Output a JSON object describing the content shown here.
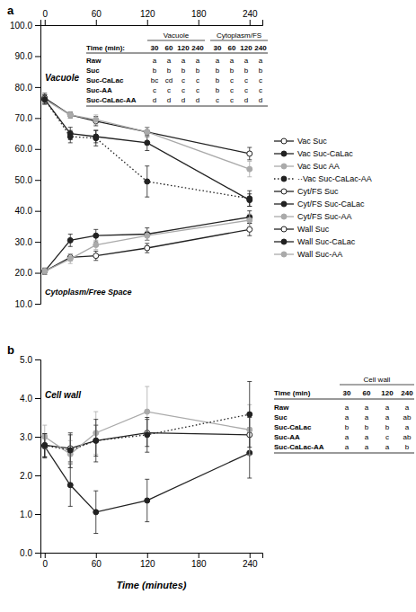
{
  "chart_data": [
    {
      "type": "line",
      "title": "a",
      "x": [
        0,
        30,
        60,
        120,
        240
      ],
      "xlim": [
        -5,
        255
      ],
      "xticks": [
        0,
        60,
        120,
        180,
        240
      ],
      "ylim": [
        10.0,
        100.0
      ],
      "yticks": [
        {
          "value": 10.0,
          "label": "10.0"
        },
        {
          "value": 20.0,
          "label": "20.0"
        },
        {
          "value": 30.0,
          "label": "30.0"
        },
        {
          "value": 40.0,
          "label": "40.0"
        },
        {
          "value": 50.0,
          "label": "50.0"
        },
        {
          "value": 60.0,
          "label": "60.0"
        },
        {
          "value": 70.0,
          "label": "70.0"
        },
        {
          "value": 80.0,
          "label": "80.0"
        },
        {
          "value": 90.0,
          "label": "90.0"
        },
        {
          "value": 100.0,
          "label": "100.0"
        }
      ],
      "grid": false,
      "legend": "right",
      "annotations": [
        "Vacuole",
        "Cytoplasm/Free Space"
      ],
      "series": [
        {
          "name": "Vac Suc",
          "color": "#222222",
          "marker": "circle-open",
          "line_style": "solid",
          "values": [
            76.5,
            71.0,
            69.0,
            65.5,
            58.5
          ],
          "errors": [
            1.5,
            1.0,
            1.5,
            1.5,
            2.0
          ]
        },
        {
          "name": "Vac Suc-CaLac",
          "color": "#222222",
          "marker": "circle",
          "line_style": "solid",
          "values": [
            76.0,
            65.0,
            64.0,
            62.0,
            43.5
          ],
          "errors": [
            1.5,
            2.0,
            2.0,
            2.5,
            2.0
          ]
        },
        {
          "name": "Vac Suc AA",
          "color": "#aaaaaa",
          "marker": "circle",
          "line_style": "solid",
          "values": [
            76.0,
            71.0,
            69.5,
            65.5,
            53.5
          ],
          "errors": [
            1.5,
            1.0,
            1.5,
            1.5,
            2.5
          ]
        },
        {
          "name": "··Vac Suc-CaLac-AA",
          "color": "#222222",
          "marker": "circle",
          "line_style": "dotted",
          "values": [
            76.0,
            64.0,
            63.5,
            49.5,
            44.0
          ],
          "errors": [
            1.5,
            2.0,
            2.5,
            5.0,
            2.5
          ]
        },
        {
          "name": "Cyt/FS Suc",
          "color": "#222222",
          "marker": "circle-open",
          "line_style": "solid",
          "values": [
            20.5,
            25.0,
            25.5,
            28.0,
            34.0
          ],
          "errors": [
            1.0,
            1.0,
            1.5,
            1.5,
            2.0
          ]
        },
        {
          "name": "Cyt/FS Suc-CaLac",
          "color": "#222222",
          "marker": "circle",
          "line_style": "solid",
          "values": [
            20.5,
            30.5,
            32.0,
            32.5,
            38.0
          ],
          "errors": [
            1.0,
            2.0,
            2.0,
            2.0,
            2.0
          ]
        },
        {
          "name": "Cyt/FS Suc-AA",
          "color": "#aaaaaa",
          "marker": "circle",
          "line_style": "solid",
          "values": [
            20.5,
            24.5,
            29.0,
            32.0,
            37.0
          ],
          "errors": [
            1.0,
            1.5,
            1.5,
            1.5,
            2.0
          ]
        }
      ],
      "table": {
        "groups": [
          "Vacuole",
          "Cytoplasm/FS"
        ],
        "header": "Time (min):",
        "columns": [
          "30",
          "60",
          "120",
          "240",
          "30",
          "60",
          "120",
          "240"
        ],
        "rows": [
          "Raw",
          "Suc",
          "Suc-CaLac",
          "Suc-AA",
          "Suc-CaLac-AA"
        ],
        "cells": [
          [
            "a",
            "a",
            "a",
            "a",
            "a",
            "a",
            "a",
            "a"
          ],
          [
            "b",
            "b",
            "b",
            "b",
            "b",
            "b",
            "b",
            "b"
          ],
          [
            "bc",
            "cd",
            "c",
            "c",
            "b",
            "c",
            "c",
            "c"
          ],
          [
            "c",
            "c",
            "c",
            "c",
            "b",
            "c",
            "c",
            "c"
          ],
          [
            "d",
            "d",
            "d",
            "d",
            "c",
            "c",
            "d",
            "d"
          ]
        ]
      }
    },
    {
      "type": "line",
      "title": "b",
      "xlabel": "Time (minutes)",
      "x": [
        0,
        30,
        60,
        120,
        240
      ],
      "xlim": [
        -5,
        255
      ],
      "xticks": [
        0,
        60,
        120,
        180,
        240
      ],
      "ylim": [
        0.0,
        5.0
      ],
      "yticks": [
        {
          "value": 0.0,
          "label": "0.0"
        },
        {
          "value": 1.0,
          "label": "1.0"
        },
        {
          "value": 2.0,
          "label": "2.0"
        },
        {
          "value": 3.0,
          "label": "3.0"
        },
        {
          "value": 4.0,
          "label": "4.0"
        },
        {
          "value": 5.0,
          "label": "5.0"
        }
      ],
      "grid": false,
      "legend": "right",
      "annotations": [
        "Cell wall"
      ],
      "series": [
        {
          "name": "Wall Suc",
          "color": "#222222",
          "marker": "circle-open",
          "line_style": "solid",
          "values": [
            2.78,
            2.7,
            2.9,
            3.1,
            3.05
          ],
          "errors": [
            0.3,
            0.35,
            0.4,
            0.35,
            0.45
          ]
        },
        {
          "name": "Wall Suc-CaLac",
          "color": "#222222",
          "marker": "circle",
          "line_style": "solid",
          "values": [
            2.75,
            1.75,
            1.05,
            1.35,
            2.58
          ],
          "errors": [
            0.3,
            0.55,
            0.55,
            0.55,
            0.65
          ]
        },
        {
          "name": "Wall Suc-AA",
          "color": "#aaaaaa",
          "marker": "circle",
          "line_style": "solid",
          "values": [
            3.0,
            2.55,
            3.1,
            3.65,
            3.18
          ],
          "errors": [
            0.3,
            0.35,
            0.55,
            0.65,
            0.65
          ]
        },
        {
          "color": "#222222",
          "marker": "circle",
          "line_style": "dotted",
          "values": [
            2.78,
            2.65,
            2.9,
            3.05,
            3.58
          ],
          "errors": [
            0.3,
            0.45,
            0.55,
            0.45,
            0.85
          ]
        }
      ],
      "table": {
        "groups": [
          "Cell wall"
        ],
        "header": "Time (min)",
        "columns": [
          "30",
          "60",
          "120",
          "240"
        ],
        "rows": [
          "Raw",
          "Suc",
          "Suc-CaLac",
          "Suc-AA",
          "Suc-CaLac-AA"
        ],
        "cells": [
          [
            "a",
            "a",
            "a",
            "a"
          ],
          [
            "a",
            "a",
            "a",
            "ab"
          ],
          [
            "b",
            "b",
            "b",
            "a"
          ],
          [
            "a",
            "a",
            "c",
            "ab"
          ],
          [
            "a",
            "a",
            "a",
            "b"
          ]
        ]
      }
    }
  ]
}
